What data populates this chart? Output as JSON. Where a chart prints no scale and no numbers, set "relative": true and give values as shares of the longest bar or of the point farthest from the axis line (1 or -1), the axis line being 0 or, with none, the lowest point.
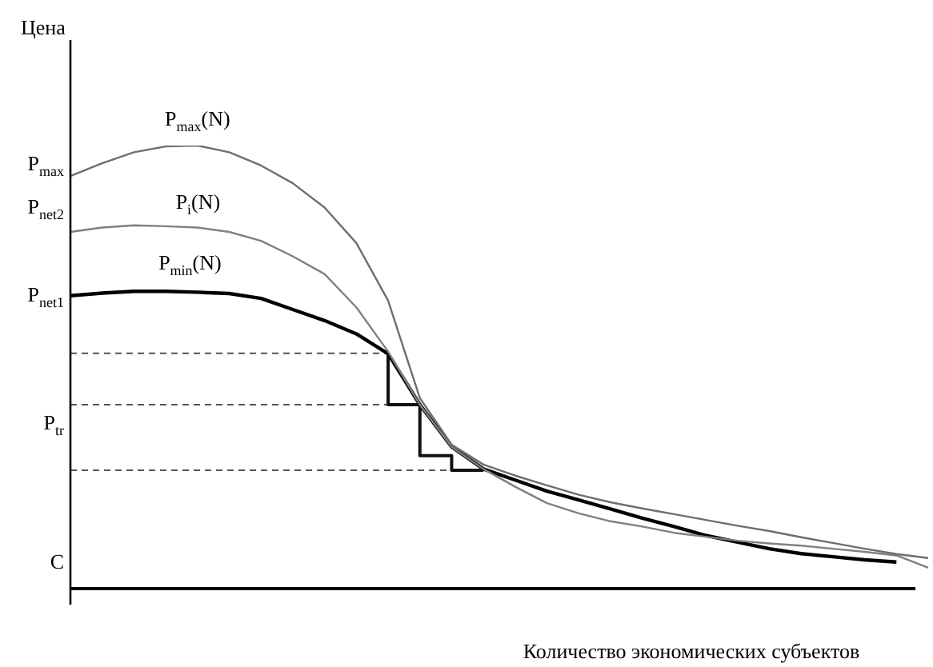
{
  "chart_data": {
    "type": "line",
    "relative": true,
    "tick_labels": false,
    "xlabel": "Количество экономических субъектов",
    "categories": [
      null,
      null,
      null,
      null,
      null,
      null,
      null,
      null,
      null,
      null,
      null,
      null,
      null,
      null,
      null,
      null,
      null,
      null,
      null,
      null,
      null,
      null,
      null,
      null,
      null,
      null,
      null,
      null
    ],
    "series": [
      {
        "name": "P$_{max}$(N)",
        "color": "#6e6e6e",
        "values": [
          0.931,
          0.96,
          0.985,
          0.998,
          1.0,
          0.985,
          0.955,
          0.915,
          0.86,
          0.78,
          0.65,
          0.43,
          0.325,
          0.28,
          0.255,
          0.233,
          0.212,
          0.195,
          0.181,
          0.168,
          0.155,
          0.142,
          0.13,
          0.116,
          0.103,
          0.09,
          0.078,
          0.069
        ]
      },
      {
        "name": "P$_{i}$(N)",
        "color": "#808080",
        "values": [
          0.805,
          0.815,
          0.82,
          0.818,
          0.815,
          0.805,
          0.785,
          0.75,
          0.71,
          0.635,
          0.535,
          0.415,
          0.32,
          0.27,
          0.23,
          0.193,
          0.17,
          0.152,
          0.14,
          0.126,
          0.117,
          0.108,
          0.102,
          0.097,
          0.09,
          0.083,
          0.075,
          0.047
        ]
      },
      {
        "name": "P$_{min}$(N)",
        "color": "#000000",
        "values": [
          0.661,
          0.667,
          0.671,
          0.671,
          0.669,
          0.666,
          0.655,
          0.63,
          0.605,
          0.575,
          0.53,
          0.415,
          0.32,
          0.27,
          0.245,
          0.22,
          0.2,
          0.18,
          0.159,
          0.14,
          0.12,
          0.105,
          0.09,
          0.079,
          0.072,
          0.065,
          0.06,
          null
        ]
      },
      {
        "type": "step",
        "color": "#111111",
        "values": [
          null,
          null,
          null,
          null,
          null,
          null,
          null,
          null,
          null,
          null,
          0.531,
          0.415,
          0.3,
          0.267,
          null,
          null,
          null,
          null,
          null,
          null,
          null,
          null,
          null,
          null,
          null,
          null,
          null,
          null
        ]
      },
      {
        "color": "#555555",
        "line_style": "dashed",
        "values": [
          0.531,
          0.531,
          0.531,
          0.531,
          0.531,
          0.531,
          0.531,
          0.531,
          0.531,
          0.531,
          0.531,
          null,
          null,
          null,
          null,
          null,
          null,
          null,
          null,
          null,
          null,
          null,
          null,
          null,
          null,
          null,
          null,
          null
        ]
      },
      {
        "color": "#555555",
        "line_style": "dashed",
        "values": [
          0.415,
          0.415,
          0.415,
          0.415,
          0.415,
          0.415,
          0.415,
          0.415,
          0.415,
          0.415,
          0.415,
          0.415,
          null,
          null,
          null,
          null,
          null,
          null,
          null,
          null,
          null,
          null,
          null,
          null,
          null,
          null,
          null,
          null
        ]
      },
      {
        "color": "#555555",
        "line_style": "dashed",
        "values": [
          0.267,
          0.267,
          0.267,
          0.267,
          0.267,
          0.267,
          0.267,
          0.267,
          0.267,
          0.267,
          0.267,
          0.267,
          0.267,
          0.267,
          null,
          null,
          null,
          null,
          null,
          null,
          null,
          null,
          null,
          null,
          null,
          null,
          null,
          null
        ]
      }
    ],
    "annotations": [
      "Цена",
      "P$_{max}$",
      "P$_{net2}$",
      "P$_{net1}$",
      "P$_{tr}$",
      "C"
    ]
  }
}
